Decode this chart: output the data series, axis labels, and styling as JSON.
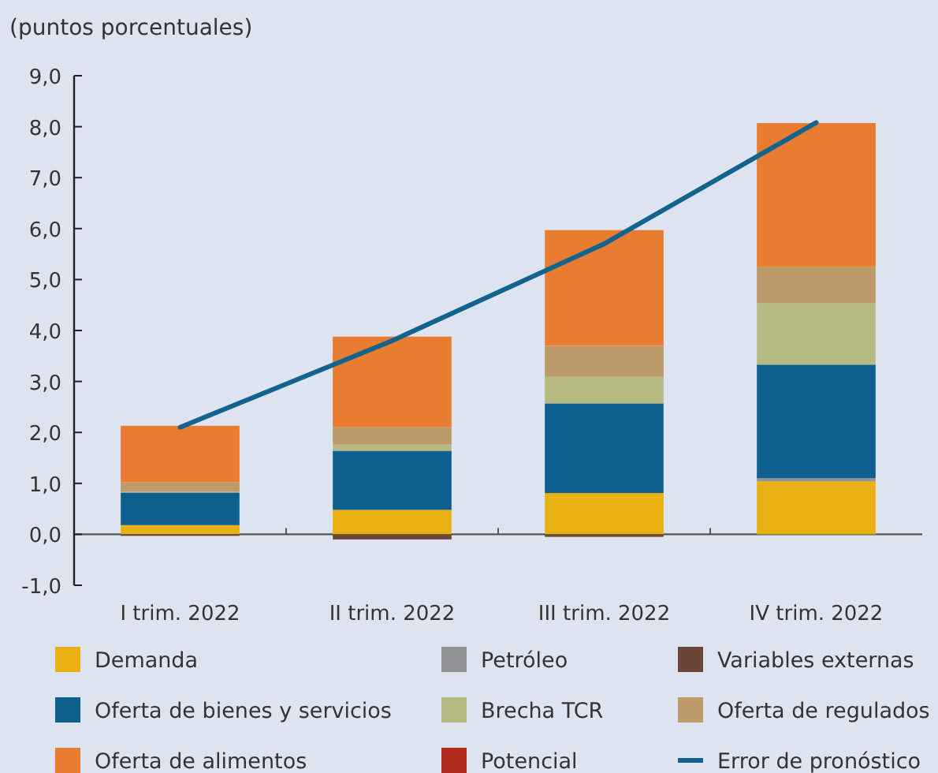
{
  "chart_data": {
    "type": "bar",
    "stacked": true,
    "ylabel": "(puntos porcentuales)",
    "categories": [
      "I trim. 2022",
      "II trim. 2022",
      "III trim. 2022",
      "IV trim. 2022"
    ],
    "ylim": [
      -1,
      9
    ],
    "yticks": [
      {
        "value": -1,
        "label": "-1,0"
      },
      {
        "value": 0,
        "label": "0,0"
      },
      {
        "value": 1,
        "label": "1,0"
      },
      {
        "value": 2,
        "label": "2,0"
      },
      {
        "value": 3,
        "label": "3,0"
      },
      {
        "value": 4,
        "label": "4,0"
      },
      {
        "value": 5,
        "label": "5,0"
      },
      {
        "value": 6,
        "label": "6,0"
      },
      {
        "value": 7,
        "label": "7,0"
      },
      {
        "value": 8,
        "label": "8,0"
      },
      {
        "value": 9,
        "label": "9,0"
      }
    ],
    "legend": "bottom",
    "series": [
      {
        "name": "Demanda",
        "color": "#e8b012",
        "values": [
          0.18,
          0.48,
          0.81,
          1.04
        ]
      },
      {
        "name": "Petróleo",
        "color": "#929396",
        "values": [
          0,
          0,
          0,
          0.06
        ]
      },
      {
        "name": "Variables externas",
        "color": "#6b4536",
        "values": [
          -0.03,
          -0.1,
          -0.05,
          0
        ]
      },
      {
        "name": "Oferta de bienes y servicios",
        "color": "#0f5f8e",
        "values": [
          0.64,
          1.16,
          1.76,
          2.23
        ]
      },
      {
        "name": "Brecha TCR",
        "color": "#b6ba82",
        "values": [
          0.02,
          0.12,
          0.52,
          1.21
        ]
      },
      {
        "name": "Oferta de regulados",
        "color": "#bc9a6a",
        "values": [
          0.18,
          0.34,
          0.61,
          0.71
        ]
      },
      {
        "name": "Oferta de alimentos",
        "color": "#e87c31",
        "values": [
          1.11,
          1.78,
          2.27,
          2.82
        ]
      },
      {
        "name": "Potencial",
        "color": "#b0291b",
        "values": [
          0,
          0,
          0,
          0
        ]
      },
      {
        "name": "Error de pronóstico",
        "type": "line",
        "color": "#12648f",
        "values": [
          2.1,
          3.8,
          5.7,
          8.08
        ]
      }
    ]
  }
}
